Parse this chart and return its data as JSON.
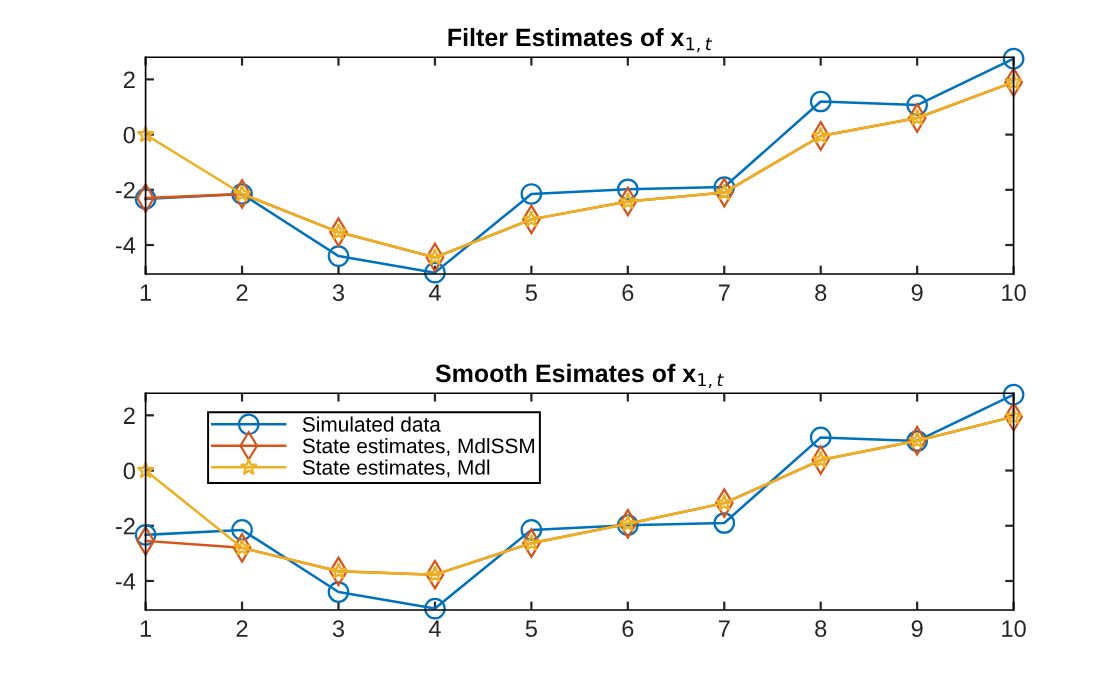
{
  "chart_data": [
    {
      "type": "line",
      "title": "Filter Estimates of x$_{1,t}$",
      "x": [
        1,
        2,
        3,
        4,
        5,
        6,
        7,
        8,
        9,
        10
      ],
      "xlim": [
        1,
        10
      ],
      "xticks": [
        1,
        2,
        3,
        4,
        5,
        6,
        7,
        8,
        9,
        10
      ],
      "ylim": [
        -5.05,
        2.8
      ],
      "yticks": [
        -4,
        -2,
        0,
        2
      ],
      "grid": false,
      "legend": false,
      "series": [
        {
          "color": "#0072bd",
          "marker": "circle",
          "values": [
            -2.33,
            -2.15,
            -4.4,
            -5.0,
            -2.15,
            -1.98,
            -1.9,
            1.2,
            1.07,
            2.75
          ]
        },
        {
          "color": "#d95319",
          "marker": "diamond",
          "values": [
            -2.3,
            -2.15,
            -3.53,
            -4.45,
            -3.07,
            -2.42,
            -2.1,
            -0.05,
            0.6,
            1.9
          ]
        },
        {
          "color": "#edb120",
          "marker": "star",
          "values": [
            0,
            -2.15,
            -3.53,
            -4.45,
            -3.07,
            -2.42,
            -2.1,
            -0.05,
            0.6,
            1.9
          ]
        }
      ]
    },
    {
      "type": "line",
      "title": "Smooth Esimates of x$_{1,t}$",
      "x": [
        1,
        2,
        3,
        4,
        5,
        6,
        7,
        8,
        9,
        10
      ],
      "xlim": [
        1,
        10
      ],
      "xticks": [
        1,
        2,
        3,
        4,
        5,
        6,
        7,
        8,
        9,
        10
      ],
      "ylim": [
        -5.05,
        2.8
      ],
      "yticks": [
        -4,
        -2,
        0,
        2
      ],
      "grid": false,
      "legend": "top left",
      "series": [
        {
          "name": "Simulated data",
          "color": "#0072bd",
          "marker": "circle",
          "values": [
            -2.33,
            -2.15,
            -4.4,
            -5.0,
            -2.15,
            -1.98,
            -1.9,
            1.2,
            1.07,
            2.75
          ]
        },
        {
          "name": "State estimates, MdlSSM",
          "color": "#d95319",
          "marker": "diamond",
          "values": [
            -2.55,
            -2.8,
            -3.65,
            -3.77,
            -2.63,
            -1.93,
            -1.18,
            0.38,
            1.08,
            1.95
          ]
        },
        {
          "name": "State estimates, Mdl",
          "color": "#edb120",
          "marker": "star",
          "values": [
            0,
            -2.8,
            -3.65,
            -3.77,
            -2.63,
            -1.93,
            -1.18,
            0.38,
            1.08,
            1.95
          ]
        }
      ]
    }
  ]
}
